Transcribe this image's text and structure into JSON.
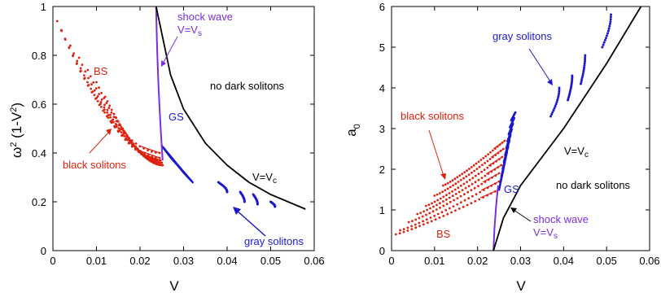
{
  "colors": {
    "bs": "#dd2211",
    "gs": "#1a1acc",
    "shock": "#7a2ee0",
    "crit": "#000000"
  },
  "chart_data": [
    {
      "type": "scatter",
      "xlabel": "V",
      "ylabel": "ω² (1-V²)",
      "ylabel_main": "ω",
      "ylabel_sup": "2",
      "ylabel_rest": " (1-V",
      "ylabel_sup2": "2",
      "ylabel_end": ")",
      "xlim": [
        0,
        0.06
      ],
      "ylim": [
        0,
        1
      ],
      "xticks": [
        0,
        0.01,
        0.02,
        0.03,
        0.04,
        0.05,
        0.06
      ],
      "xtick_labels": [
        "0",
        "0.01",
        "0.02",
        "0.03",
        "0.04",
        "0.05",
        "0.06"
      ],
      "yticks": [
        0,
        0.2,
        0.4,
        0.6,
        0.8,
        1
      ],
      "ytick_labels": [
        "0",
        "0.2",
        "0.4",
        "0.6",
        "0.8",
        "1"
      ],
      "annotations": {
        "bs": "BS",
        "gs": "GS",
        "black_solitons": "black solitons",
        "gray_solitons": "gray solitons",
        "no_dark": "no dark solitons",
        "shock1": "shock wave",
        "shock2_main": "V=V",
        "shock2_sub": "s",
        "crit_main": "V=V",
        "crit_sub": "c"
      },
      "series": [
        {
          "name": "black solitons",
          "curves": [
            {
              "x": [
                0.001,
                0.0245
              ],
              "y": [
                0.94,
                0.4
              ]
            },
            {
              "x": [
                0.002,
                0.0245
              ],
              "y": [
                0.9,
                0.38
              ]
            },
            {
              "x": [
                0.004,
                0.0245
              ],
              "y": [
                0.84,
                0.37
              ]
            },
            {
              "x": [
                0.006,
                0.0247
              ],
              "y": [
                0.79,
                0.37
              ]
            },
            {
              "x": [
                0.008,
                0.0248
              ],
              "y": [
                0.74,
                0.36
              ]
            },
            {
              "x": [
                0.01,
                0.0249
              ],
              "y": [
                0.69,
                0.36
              ]
            },
            {
              "x": [
                0.012,
                0.025
              ],
              "y": [
                0.63,
                0.36
              ]
            },
            {
              "x": [
                0.014,
                0.0251
              ],
              "y": [
                0.56,
                0.35
              ]
            },
            {
              "x": [
                0.016,
                0.0252
              ],
              "y": [
                0.5,
                0.35
              ]
            }
          ]
        },
        {
          "name": "gray solitons",
          "arcs": [
            {
              "x": [
                0.025,
                0.031
              ],
              "y": [
                0.43,
                0.38
              ]
            },
            {
              "x": [
                0.03,
                0.036
              ],
              "y": [
                0.32,
                0.28
              ]
            },
            {
              "x": [
                0.038,
                0.04
              ],
              "y": [
                0.28,
                0.24
              ]
            },
            {
              "x": [
                0.043,
                0.044
              ],
              "y": [
                0.24,
                0.2
              ]
            },
            {
              "x": [
                0.046,
                0.047
              ],
              "y": [
                0.23,
                0.19
              ]
            },
            {
              "x": [
                0.05,
                0.051
              ],
              "y": [
                0.2,
                0.18
              ]
            }
          ]
        },
        {
          "name": "shock wave V=Vs",
          "x": [
            0.0237,
            0.0252
          ],
          "y": [
            1.0,
            0.37
          ]
        },
        {
          "name": "V=Vc",
          "x": [
            0.0237,
            0.027,
            0.03,
            0.035,
            0.04,
            0.045,
            0.05,
            0.058
          ],
          "y": [
            1.0,
            0.72,
            0.58,
            0.44,
            0.35,
            0.28,
            0.23,
            0.17
          ]
        }
      ]
    },
    {
      "type": "scatter",
      "xlabel": "V",
      "ylabel": "a0",
      "ylabel_main": "a",
      "ylabel_sub": "0",
      "xlim": [
        0,
        0.06
      ],
      "ylim": [
        0,
        6
      ],
      "xticks": [
        0,
        0.01,
        0.02,
        0.03,
        0.04,
        0.05,
        0.06
      ],
      "xtick_labels": [
        "0",
        "0.01",
        "0.02",
        "0.03",
        "0.04",
        "0.05",
        "0.06"
      ],
      "yticks": [
        0,
        1,
        2,
        3,
        4,
        5,
        6
      ],
      "ytick_labels": [
        "0",
        "1",
        "2",
        "3",
        "4",
        "5",
        "6"
      ],
      "annotations": {
        "gray_solitons": "gray solitons",
        "black_solitons": "black  solitons",
        "crit_main": "V=V",
        "crit_sub": "c",
        "no_dark": "no dark solitons",
        "gs": "GS",
        "bs": "BS",
        "shock1": "shock wave",
        "shock2_main": "V=V",
        "shock2_sub": "s"
      },
      "series": [
        {
          "name": "black solitons",
          "curves": [
            {
              "x": [
                0.001,
                0.025
              ],
              "y": [
                0.4,
                1.5
              ]
            },
            {
              "x": [
                0.002,
                0.025
              ],
              "y": [
                0.5,
                1.7
              ]
            },
            {
              "x": [
                0.004,
                0.025
              ],
              "y": [
                0.7,
                1.9
              ]
            },
            {
              "x": [
                0.006,
                0.0255
              ],
              "y": [
                0.9,
                2.1
              ]
            },
            {
              "x": [
                0.008,
                0.0257
              ],
              "y": [
                1.1,
                2.3
              ]
            },
            {
              "x": [
                0.01,
                0.026
              ],
              "y": [
                1.35,
                2.5
              ]
            },
            {
              "x": [
                0.012,
                0.0263
              ],
              "y": [
                1.6,
                2.7
              ]
            }
          ]
        },
        {
          "name": "gray solitons",
          "arcs": [
            {
              "x": [
                0.025,
                0.033
              ],
              "y": [
                1.5,
                3.2
              ]
            },
            {
              "x": [
                0.026,
                0.034
              ],
              "y": [
                2.0,
                3.4
              ]
            },
            {
              "x": [
                0.037,
                0.039
              ],
              "y": [
                3.3,
                4.0
              ]
            },
            {
              "x": [
                0.041,
                0.042
              ],
              "y": [
                3.7,
                4.3
              ]
            },
            {
              "x": [
                0.044,
                0.045
              ],
              "y": [
                4.1,
                4.8
              ]
            },
            {
              "x": [
                0.049,
                0.051
              ],
              "y": [
                5.0,
                5.8
              ]
            }
          ]
        },
        {
          "name": "shock wave V=Vs",
          "x": [
            0.0237,
            0.0248
          ],
          "y": [
            0.0,
            1.6
          ]
        },
        {
          "name": "V=Vc",
          "x": [
            0.0237,
            0.026,
            0.03,
            0.035,
            0.04,
            0.045,
            0.05,
            0.058
          ],
          "y": [
            0.0,
            0.8,
            1.6,
            2.3,
            3.0,
            3.8,
            4.6,
            6.0
          ]
        }
      ]
    }
  ]
}
